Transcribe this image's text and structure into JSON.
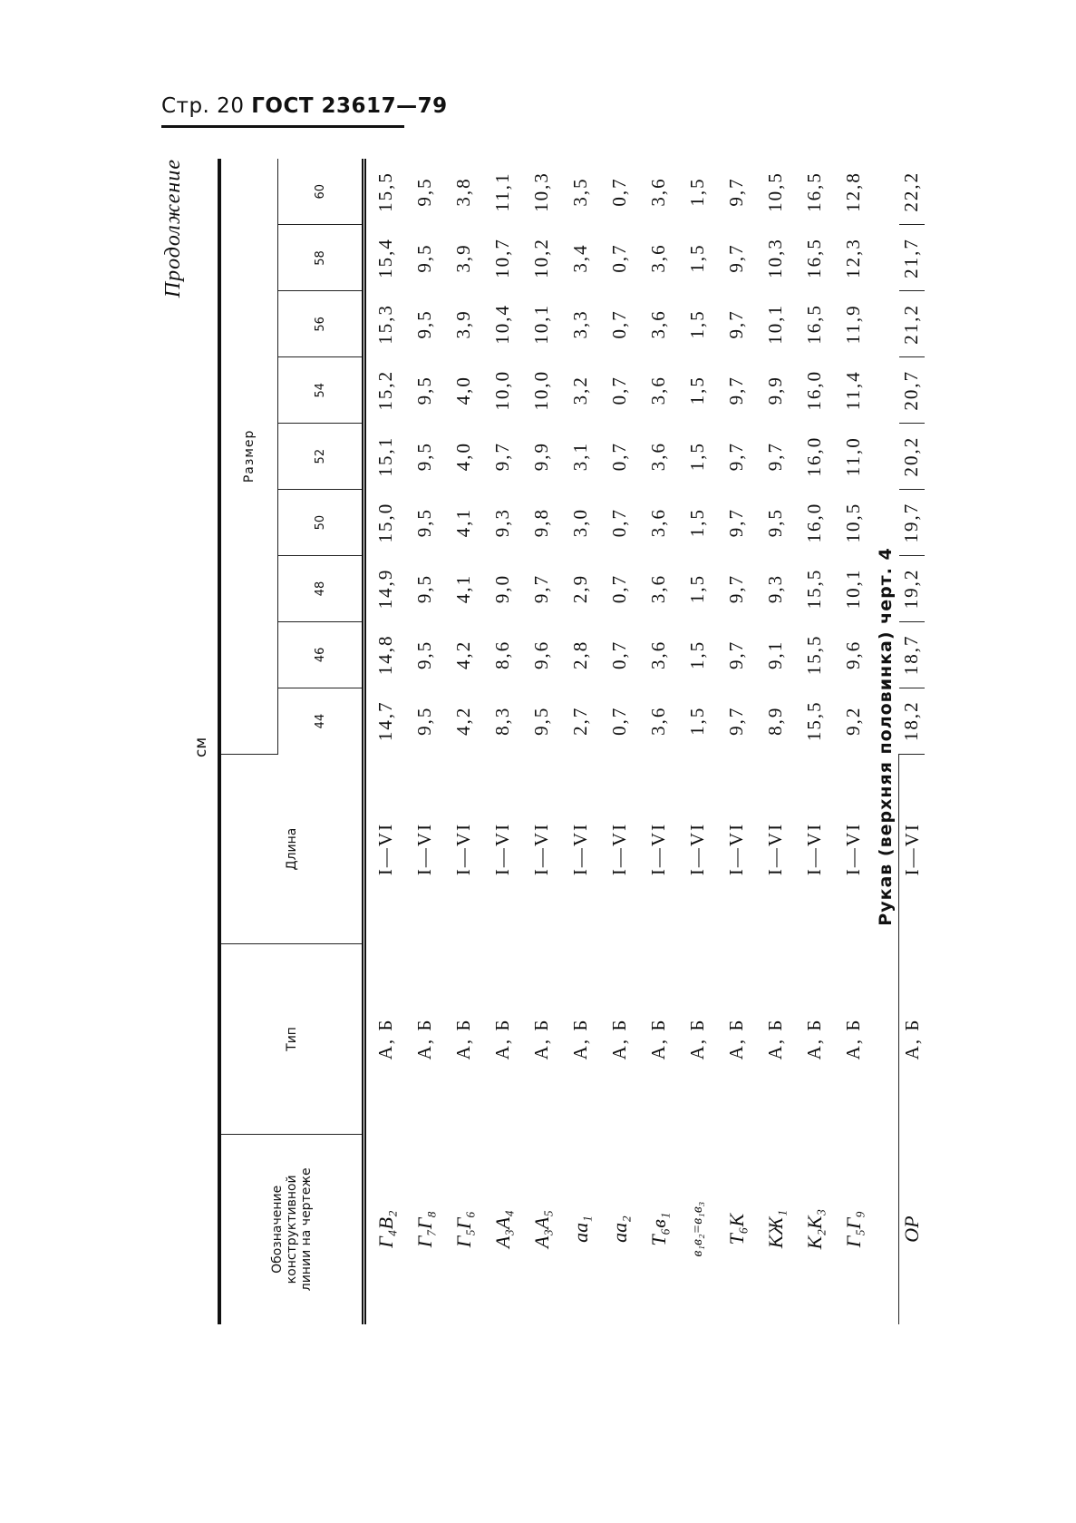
{
  "page_header": {
    "page": "Стр. 20",
    "standard": "ГОСТ 23617—79"
  },
  "continuation": "Продолжение",
  "unit": "см",
  "table": {
    "headers": {
      "designation": "Обозначение конструктивной линии на чертеже",
      "type": "Тип",
      "length": "Длина",
      "size_group": "Размер",
      "sizes": [
        "44",
        "46",
        "48",
        "50",
        "52",
        "54",
        "56",
        "58",
        "60"
      ]
    },
    "rows": [
      {
        "designation": "Г₄В₂",
        "type": "А, Б",
        "length": "I—VI",
        "values": [
          "14,7",
          "14,8",
          "14,9",
          "15,0",
          "15,1",
          "15,2",
          "15,3",
          "15,4",
          "15,5"
        ]
      },
      {
        "designation": "Г₇Г₈",
        "type": "А, Б",
        "length": "I—VI",
        "values": [
          "9,5",
          "9,5",
          "9,5",
          "9,5",
          "9,5",
          "9,5",
          "9,5",
          "9,5",
          "9,5"
        ]
      },
      {
        "designation": "Г₅Г₆",
        "type": "А, Б",
        "length": "I—VI",
        "values": [
          "4,2",
          "4,2",
          "4,1",
          "4,1",
          "4,0",
          "4,0",
          "3,9",
          "3,9",
          "3,8"
        ]
      },
      {
        "designation": "А₃А₄",
        "type": "А, Б",
        "length": "I—VI",
        "values": [
          "8,3",
          "8,6",
          "9,0",
          "9,3",
          "9,7",
          "10,0",
          "10,4",
          "10,7",
          "11,1"
        ]
      },
      {
        "designation": "А₃А₅",
        "type": "А, Б",
        "length": "I—VI",
        "values": [
          "9,5",
          "9,6",
          "9,7",
          "9,8",
          "9,9",
          "10,0",
          "10,1",
          "10,2",
          "10,3"
        ]
      },
      {
        "designation": "аа₁",
        "type": "А, Б",
        "length": "I—VI",
        "values": [
          "2,7",
          "2,8",
          "2,9",
          "3,0",
          "3,1",
          "3,2",
          "3,3",
          "3,4",
          "3,5"
        ]
      },
      {
        "designation": "аа₂",
        "type": "А, Б",
        "length": "I—VI",
        "values": [
          "0,7",
          "0,7",
          "0,7",
          "0,7",
          "0,7",
          "0,7",
          "0,7",
          "0,7",
          "0,7"
        ]
      },
      {
        "designation": "Т₆в₁",
        "type": "А, Б",
        "length": "I—VI",
        "values": [
          "3,6",
          "3,6",
          "3,6",
          "3,6",
          "3,6",
          "3,6",
          "3,6",
          "3,6",
          "3,6"
        ]
      },
      {
        "designation": "в₁в₂=в₁в₃",
        "type": "А, Б",
        "length": "I—VI",
        "values": [
          "1,5",
          "1,5",
          "1,5",
          "1,5",
          "1,5",
          "1,5",
          "1,5",
          "1,5",
          "1,5"
        ]
      },
      {
        "designation": "Т₆К",
        "type": "А, Б",
        "length": "I—VI",
        "values": [
          "9,7",
          "9,7",
          "9,7",
          "9,7",
          "9,7",
          "9,7",
          "9,7",
          "9,7",
          "9,7"
        ]
      },
      {
        "designation": "КЖ₁",
        "type": "А, Б",
        "length": "I—VI",
        "values": [
          "8,9",
          "9,1",
          "9,3",
          "9,5",
          "9,7",
          "9,9",
          "10,1",
          "10,3",
          "10,5"
        ]
      },
      {
        "designation": "К₂К₃",
        "type": "А, Б",
        "length": "I—VI",
        "values": [
          "15,5",
          "15,5",
          "15,5",
          "16,0",
          "16,0",
          "16,0",
          "16,5",
          "16,5",
          "16,5"
        ]
      },
      {
        "designation": "Г₅Г₉",
        "type": "А, Б",
        "length": "I—VI",
        "values": [
          "9,2",
          "9,6",
          "10,1",
          "10,5",
          "11,0",
          "11,4",
          "11,9",
          "12,3",
          "12,8"
        ]
      }
    ],
    "section": {
      "title": "Рукав (верхняя половинка) черт. 4",
      "rows": [
        {
          "designation": "ОР",
          "type": "А, Б",
          "length": "I—VI",
          "values": [
            "18,2",
            "18,7",
            "19,2",
            "19,7",
            "20,2",
            "20,7",
            "21,2",
            "21,7",
            "22,2"
          ]
        }
      ]
    }
  }
}
